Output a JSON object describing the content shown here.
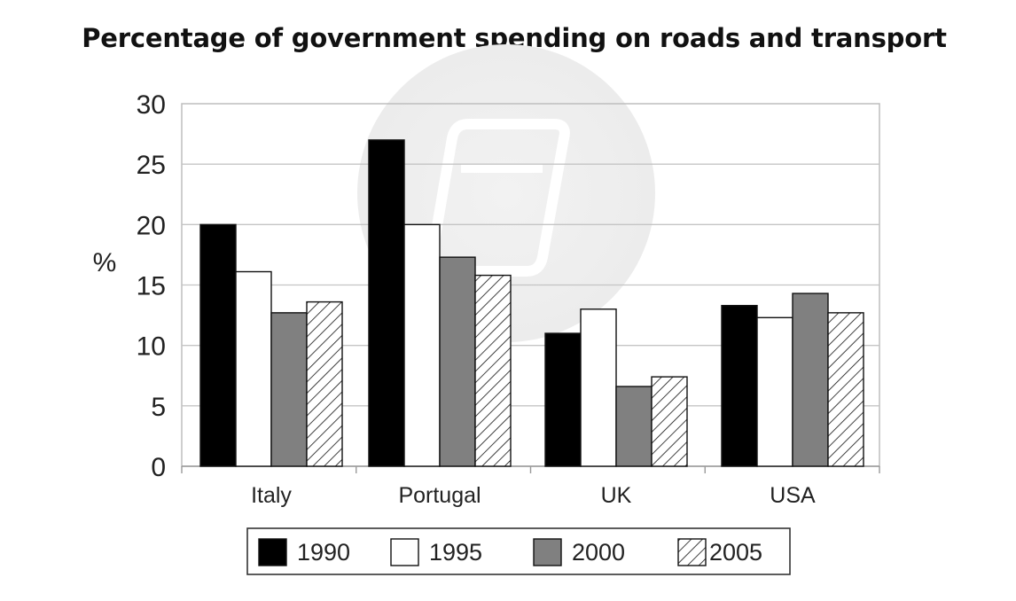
{
  "chart_data": {
    "type": "bar",
    "title": "Percentage of government spending on roads and transport",
    "ylabel": "%",
    "xlabel": "",
    "ylim": [
      0,
      30
    ],
    "yticks": [
      0,
      5,
      10,
      15,
      20,
      25,
      30
    ],
    "grid": true,
    "legend_position": "bottom",
    "categories": [
      "Italy",
      "Portugal",
      "UK",
      "USA"
    ],
    "series": [
      {
        "name": "1990",
        "fill": "#000000",
        "pattern": "solid",
        "values": [
          20,
          27,
          11,
          13.3
        ]
      },
      {
        "name": "1995",
        "fill": "#ffffff",
        "pattern": "solid",
        "values": [
          16.1,
          20,
          13,
          12.3
        ]
      },
      {
        "name": "2000",
        "fill": "#808080",
        "pattern": "solid",
        "values": [
          12.7,
          17.3,
          6.6,
          14.3
        ]
      },
      {
        "name": "2005",
        "fill": "#ffffff",
        "pattern": "diagonal-hatch",
        "values": [
          13.6,
          15.8,
          7.4,
          12.7
        ]
      }
    ]
  }
}
